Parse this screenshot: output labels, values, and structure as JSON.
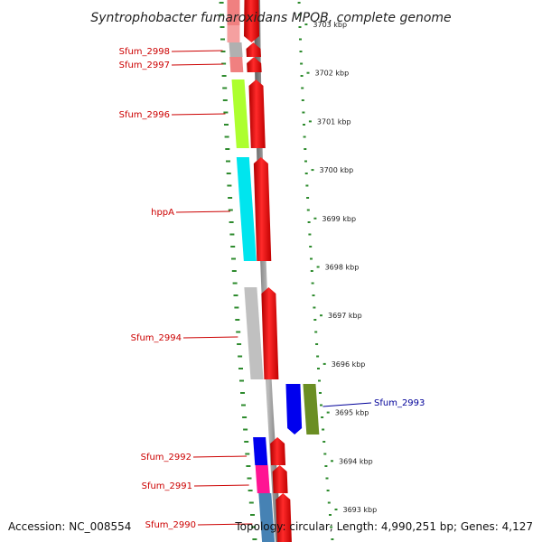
{
  "title": "Syntrophobacter fumaroxidans MPOB, complete genome",
  "footer": {
    "accession": "Accession: NC_008554",
    "topology": "Topology: circular; Length: 4,990,251 bp; Genes: 4,127"
  },
  "colors": {
    "label_red": "#cc0000",
    "label_blue": "#000099",
    "dot_green": "#2e8b2e",
    "backbone": "#777777",
    "cds": "#ff0000"
  },
  "ticks": [
    "3703 kbp",
    "3702 kbp",
    "3701 kbp",
    "3700 kbp",
    "3699 kbp",
    "3698 kbp",
    "3697 kbp",
    "3696 kbp",
    "3695 kbp",
    "3694 kbp",
    "3693 kbp"
  ],
  "genes": [
    {
      "label": "Sfum_2998",
      "color": "#b0b0b0",
      "strand": "right"
    },
    {
      "label": "Sfum_2997",
      "color": "#f08080",
      "strand": "right"
    },
    {
      "label": "Sfum_2996",
      "color": "#adff2f",
      "strand": "right"
    },
    {
      "label": "hppA",
      "color": "#00e5ee",
      "strand": "right"
    },
    {
      "label": "Sfum_2994",
      "color": "#c0c0c0",
      "strand": "right"
    },
    {
      "label": "Sfum_2993",
      "color": "#6b8e23",
      "strand": "left"
    },
    {
      "label": "Sfum_2992",
      "color": "#0000ee",
      "strand": "right"
    },
    {
      "label": "Sfum_2991",
      "color": "#ff1493",
      "strand": "right"
    },
    {
      "label": "Sfum_2990",
      "color": "#4682b4",
      "strand": "right"
    }
  ]
}
